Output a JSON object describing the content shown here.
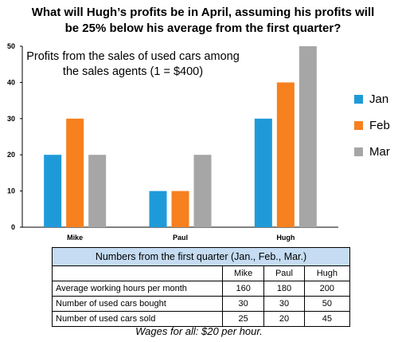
{
  "question": "What will Hugh’s profits be in April, assuming his profits will be 25% below his average from the first quarter?",
  "colors": {
    "jan": "#1f9ad8",
    "feb": "#f7801f",
    "mar": "#a6a6a6"
  },
  "chart_data": {
    "type": "bar",
    "title": "Profits from the sales of used cars among the sales agents (1 = $400)",
    "categories": [
      "Mike",
      "Paul",
      "Hugh"
    ],
    "series": [
      {
        "name": "Jan",
        "values": [
          20,
          10,
          30
        ]
      },
      {
        "name": "Feb",
        "values": [
          30,
          10,
          40
        ]
      },
      {
        "name": "Mar",
        "values": [
          20,
          20,
          50
        ]
      }
    ],
    "ylim": [
      0,
      50
    ],
    "yticks": [
      0,
      10,
      20,
      30,
      40,
      50
    ],
    "grid": false,
    "legend": "right"
  },
  "table": {
    "caption": "Numbers from the first quarter (Jan., Feb., Mar.)",
    "columns": [
      "Mike",
      "Paul",
      "Hugh"
    ],
    "rows": [
      {
        "label": "Average working hours per month",
        "values": [
          "160",
          "180",
          "200"
        ]
      },
      {
        "label": "Number of used cars bought",
        "values": [
          "30",
          "30",
          "50"
        ]
      },
      {
        "label": "Number of used cars sold",
        "values": [
          "25",
          "20",
          "45"
        ]
      }
    ]
  },
  "footnote": "Wages for all: $20 per hour."
}
